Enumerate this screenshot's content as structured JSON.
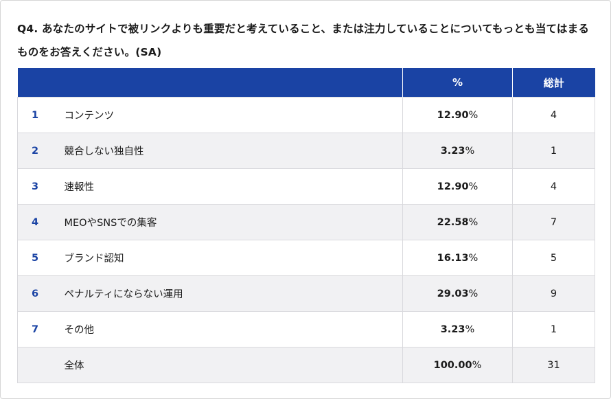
{
  "question": "Q4. あなたのサイトで被リンクよりも重要だと考えていること、または注力していることについてもっとも当てはまるものをお答えください。(SA)",
  "table": {
    "headers": {
      "num": "",
      "label": "",
      "pct": "%",
      "total": "総計"
    },
    "rows": [
      {
        "num": "1",
        "label": "コンテンツ",
        "pct": "12.90",
        "total": "4"
      },
      {
        "num": "2",
        "label": "競合しない独自性",
        "pct": "3.23",
        "total": "1"
      },
      {
        "num": "3",
        "label": "速報性",
        "pct": "12.90",
        "total": "4"
      },
      {
        "num": "4",
        "label": "MEOやSNSでの集客",
        "pct": "22.58",
        "total": "7"
      },
      {
        "num": "5",
        "label": "ブランド認知",
        "pct": "16.13",
        "total": "5"
      },
      {
        "num": "6",
        "label": "ペナルティにならない運用",
        "pct": "29.03",
        "total": "9"
      },
      {
        "num": "7",
        "label": "その他",
        "pct": "3.23",
        "total": "1"
      },
      {
        "num": "",
        "label": "全体",
        "pct": "100.00",
        "total": "31"
      }
    ],
    "pct_sign": "%"
  },
  "colors": {
    "header_bg": "#1a43a4",
    "number_text": "#1a43a4",
    "stripe_bg": "#f1f1f3"
  }
}
